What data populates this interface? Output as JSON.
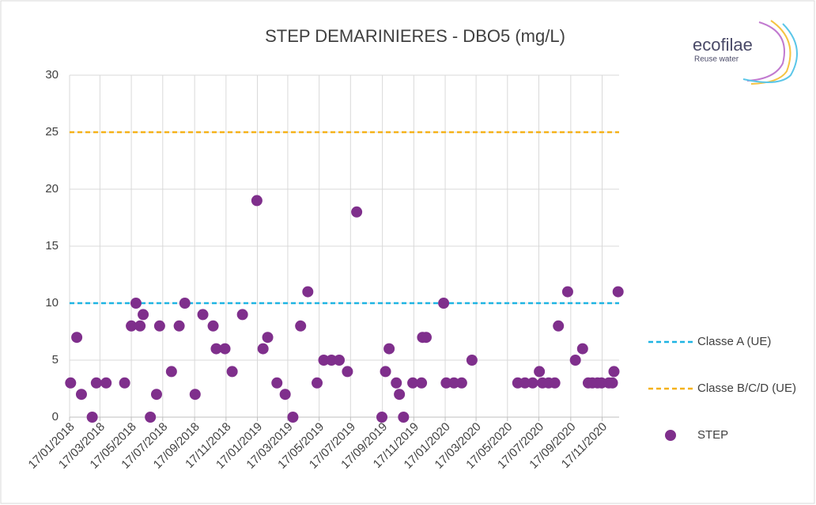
{
  "chart_data": {
    "type": "scatter",
    "title": "STEP DEMARINIERES - DBO5 (mg/L)",
    "logo": {
      "name": "ecofilae",
      "tagline": "Reuse water"
    },
    "series": [
      {
        "name": "STEP",
        "color": "#7f2f8c",
        "x": [
          "2018-01-19",
          "2018-01-31",
          "2018-02-09",
          "2018-03-02",
          "2018-03-10",
          "2018-03-29",
          "2018-05-04",
          "2018-05-17",
          "2018-05-26",
          "2018-06-03",
          "2018-06-09",
          "2018-06-23",
          "2018-07-05",
          "2018-07-11",
          "2018-08-03",
          "2018-08-18",
          "2018-08-29",
          "2018-09-18",
          "2018-10-03",
          "2018-10-23",
          "2018-10-29",
          "2018-11-15",
          "2018-11-29",
          "2018-12-19",
          "2019-01-16",
          "2019-01-28",
          "2019-02-06",
          "2019-02-24",
          "2019-03-12",
          "2019-03-27",
          "2019-04-11",
          "2019-04-25",
          "2019-05-13",
          "2019-05-26",
          "2019-06-10",
          "2019-06-25",
          "2019-07-11",
          "2019-07-29",
          "2019-09-16",
          "2019-09-23",
          "2019-09-30",
          "2019-10-14",
          "2019-10-20",
          "2019-10-28",
          "2019-11-15",
          "2019-12-02",
          "2019-12-04",
          "2019-12-11",
          "2020-01-14",
          "2020-01-19",
          "2020-02-03",
          "2020-02-18",
          "2020-03-09",
          "2020-06-06",
          "2020-06-20",
          "2020-07-05",
          "2020-07-18",
          "2020-07-24",
          "2020-08-05",
          "2020-08-17",
          "2020-08-24",
          "2020-09-11",
          "2020-09-26",
          "2020-10-10",
          "2020-10-21",
          "2020-10-29",
          "2020-11-08",
          "2020-11-16",
          "2020-11-30",
          "2020-12-07",
          "2020-12-10",
          "2020-12-18"
        ],
        "values": [
          3,
          7,
          2,
          0,
          3,
          3,
          3,
          8,
          10,
          8,
          9,
          0,
          2,
          8,
          4,
          8,
          10,
          2,
          9,
          8,
          6,
          6,
          4,
          9,
          19,
          6,
          7,
          3,
          2,
          0,
          8,
          11,
          3,
          5,
          5,
          5,
          4,
          18,
          0,
          4,
          6,
          3,
          2,
          0,
          3,
          3,
          7,
          7,
          10,
          3,
          3,
          3,
          5,
          3,
          3,
          3,
          4,
          3,
          3,
          3,
          8,
          11,
          5,
          6,
          3,
          3,
          3,
          3,
          3,
          3,
          4,
          11
        ]
      }
    ],
    "reference_lines": [
      {
        "name": "Classe A (UE)",
        "value": 10,
        "color": "#1fb4e3"
      },
      {
        "name": "Classe B/C/D (UE)",
        "value": 25,
        "color": "#f5b21a"
      }
    ],
    "xlim": [
      "2018-01-17",
      "2020-12-20"
    ],
    "xticks": [
      {
        "value": "2018-01-17",
        "label": "17/01/2018"
      },
      {
        "value": "2018-03-17",
        "label": "17/03/2018"
      },
      {
        "value": "2018-05-17",
        "label": "17/05/2018"
      },
      {
        "value": "2018-07-17",
        "label": "17/07/2018"
      },
      {
        "value": "2018-09-17",
        "label": "17/09/2018"
      },
      {
        "value": "2018-11-17",
        "label": "17/11/2018"
      },
      {
        "value": "2019-01-17",
        "label": "17/01/2019"
      },
      {
        "value": "2019-03-17",
        "label": "17/03/2019"
      },
      {
        "value": "2019-05-17",
        "label": "17/05/2019"
      },
      {
        "value": "2019-07-17",
        "label": "17/07/2019"
      },
      {
        "value": "2019-09-17",
        "label": "17/09/2019"
      },
      {
        "value": "2019-11-17",
        "label": "17/11/2019"
      },
      {
        "value": "2020-01-17",
        "label": "17/01/2020"
      },
      {
        "value": "2020-03-17",
        "label": "17/03/2020"
      },
      {
        "value": "2020-05-17",
        "label": "17/05/2020"
      },
      {
        "value": "2020-07-17",
        "label": "17/07/2020"
      },
      {
        "value": "2020-09-17",
        "label": "17/09/2020"
      },
      {
        "value": "2020-11-17",
        "label": "17/11/2020"
      }
    ],
    "ylim": [
      0,
      30
    ],
    "yticks": [
      0,
      5,
      10,
      15,
      20,
      25,
      30
    ],
    "grid": true,
    "legend": "right"
  }
}
